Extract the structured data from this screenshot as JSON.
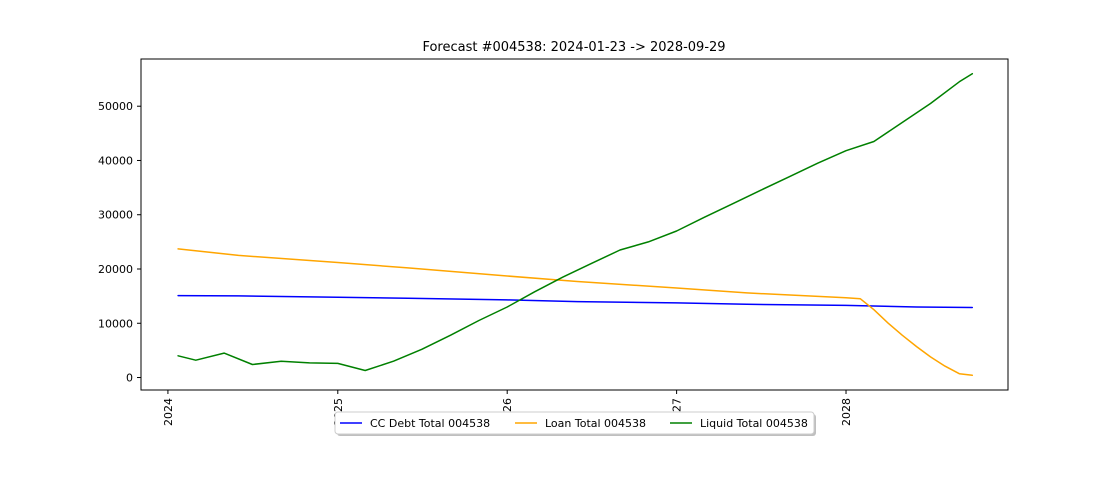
{
  "chart_data": {
    "type": "line",
    "title": "Forecast #004538: 2024-01-23 -> 2028-09-29",
    "xlabel": "",
    "ylabel": "",
    "xlim": [
      "2023-11-04",
      "2028-12-15"
    ],
    "ylim": [
      -2300,
      58700
    ],
    "x_ticks": [
      "2024",
      "2025",
      "2026",
      "2027",
      "2028"
    ],
    "y_ticks": [
      "0",
      "10000",
      "20000",
      "30000",
      "40000",
      "50000"
    ],
    "grid": false,
    "legend_position": "bottom-center",
    "series": [
      {
        "name": "CC Debt Total 004538",
        "color": "#0000ff",
        "points": [
          [
            "2024-01-23",
            15100
          ],
          [
            "2024-06-01",
            15050
          ],
          [
            "2025-01-01",
            14800
          ],
          [
            "2025-06-01",
            14600
          ],
          [
            "2026-01-01",
            14300
          ],
          [
            "2026-06-01",
            14000
          ],
          [
            "2027-01-01",
            13750
          ],
          [
            "2027-06-01",
            13500
          ],
          [
            "2028-01-01",
            13300
          ],
          [
            "2028-06-01",
            13000
          ],
          [
            "2028-09-29",
            12900
          ]
        ]
      },
      {
        "name": "Loan Total 004538",
        "color": "#ffa500",
        "points": [
          [
            "2024-01-23",
            23700
          ],
          [
            "2024-06-01",
            22500
          ],
          [
            "2025-01-01",
            21200
          ],
          [
            "2025-06-01",
            20200
          ],
          [
            "2026-01-01",
            18700
          ],
          [
            "2026-06-01",
            17700
          ],
          [
            "2027-01-01",
            16500
          ],
          [
            "2027-06-01",
            15600
          ],
          [
            "2028-01-01",
            14700
          ],
          [
            "2028-02-01",
            14500
          ],
          [
            "2028-03-01",
            12500
          ],
          [
            "2028-04-01",
            10000
          ],
          [
            "2028-05-01",
            7800
          ],
          [
            "2028-06-01",
            5700
          ],
          [
            "2028-07-01",
            3800
          ],
          [
            "2028-08-01",
            2100
          ],
          [
            "2028-09-01",
            700
          ],
          [
            "2028-09-29",
            400
          ]
        ]
      },
      {
        "name": "Liquid Total 004538",
        "color": "#008000",
        "points": [
          [
            "2024-01-23",
            4000
          ],
          [
            "2024-03-01",
            3200
          ],
          [
            "2024-05-01",
            4500
          ],
          [
            "2024-07-01",
            2400
          ],
          [
            "2024-09-01",
            3000
          ],
          [
            "2024-11-01",
            2700
          ],
          [
            "2025-01-01",
            2600
          ],
          [
            "2025-03-01",
            1300
          ],
          [
            "2025-05-01",
            3000
          ],
          [
            "2025-07-01",
            5200
          ],
          [
            "2025-09-01",
            7800
          ],
          [
            "2025-11-01",
            10500
          ],
          [
            "2026-01-01",
            13000
          ],
          [
            "2026-03-01",
            15800
          ],
          [
            "2026-05-01",
            18500
          ],
          [
            "2026-07-01",
            21000
          ],
          [
            "2026-09-01",
            23500
          ],
          [
            "2026-11-01",
            25000
          ],
          [
            "2027-01-01",
            27000
          ],
          [
            "2027-03-01",
            29500
          ],
          [
            "2027-05-01",
            32000
          ],
          [
            "2027-07-01",
            34500
          ],
          [
            "2027-09-01",
            37000
          ],
          [
            "2027-11-01",
            39500
          ],
          [
            "2028-01-01",
            41800
          ],
          [
            "2028-03-01",
            43500
          ],
          [
            "2028-05-01",
            47000
          ],
          [
            "2028-07-01",
            50500
          ],
          [
            "2028-09-01",
            54500
          ],
          [
            "2028-09-29",
            56000
          ]
        ]
      }
    ]
  }
}
